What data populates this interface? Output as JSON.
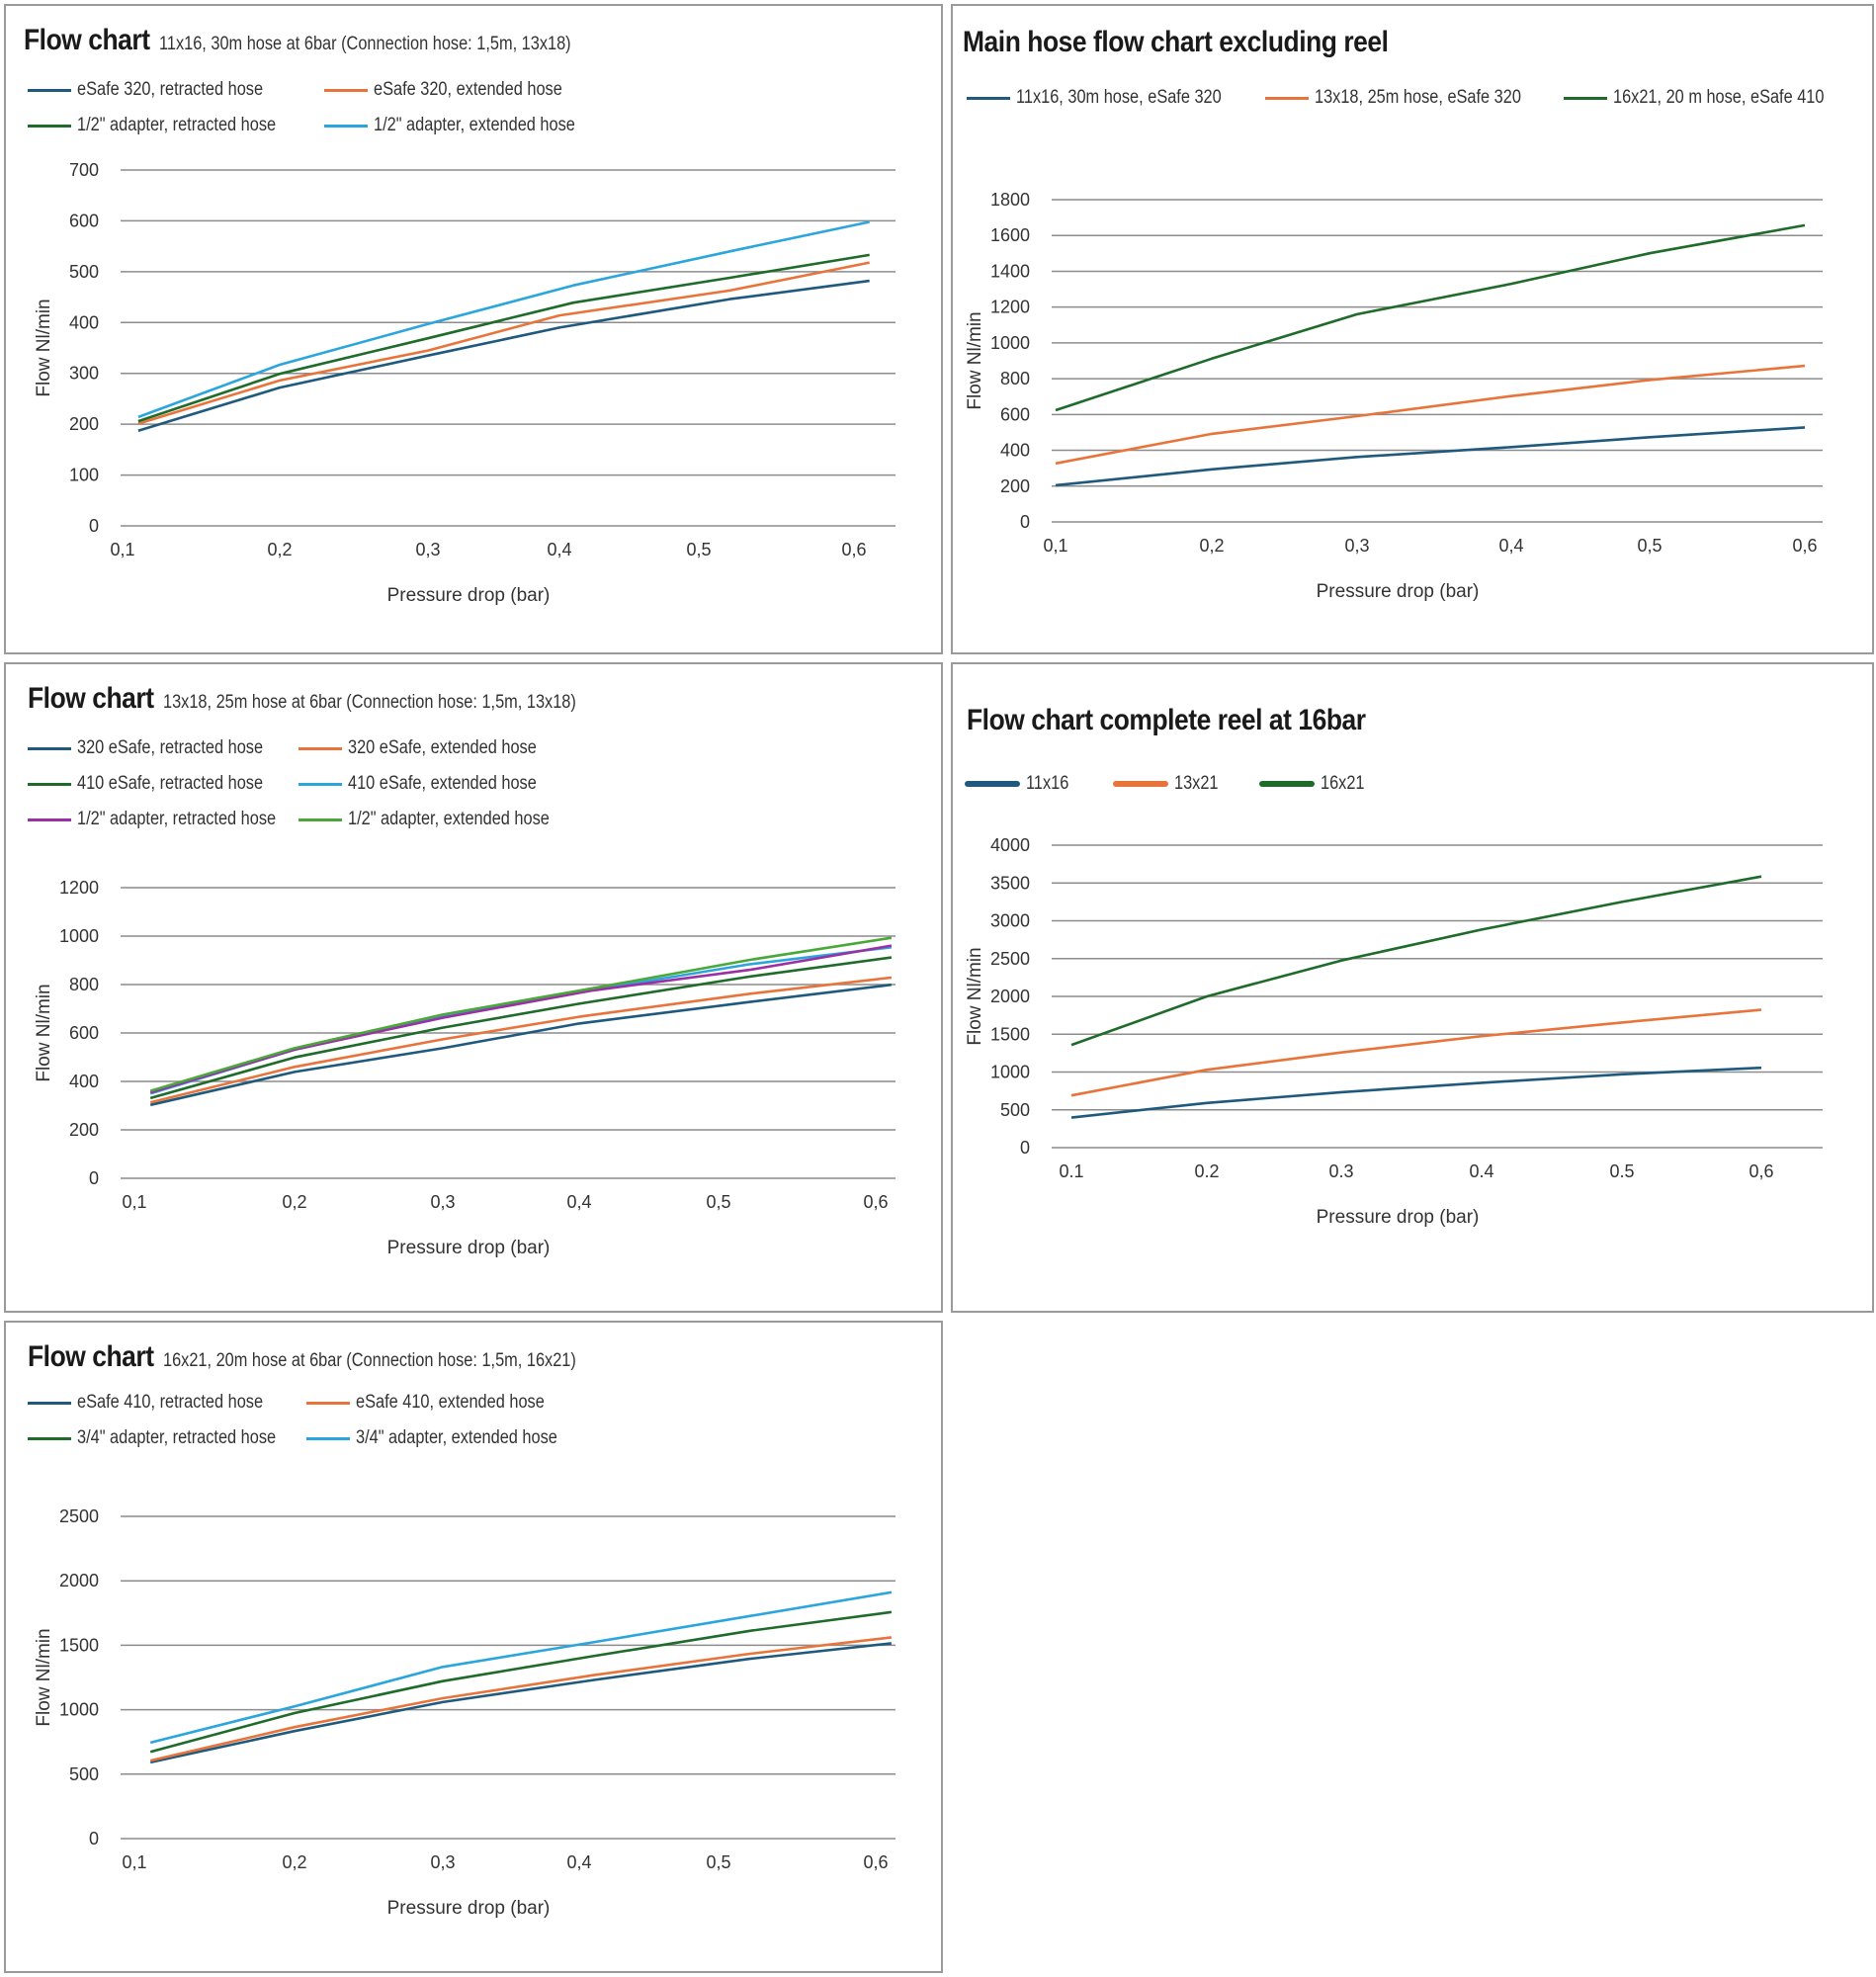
{
  "colors": {
    "dark_blue": "#1f5a7e",
    "orange": "#e8743b",
    "dark_green": "#1e6b2a",
    "light_blue": "#2ba6dc",
    "purple": "#9b2fa6",
    "light_green": "#4aa83a",
    "grid": "#8c8c8c"
  },
  "chart_data": [
    {
      "id": "chart1",
      "type": "line",
      "title": "Flow chart",
      "subtitle": "11x16, 30m hose at 6bar (Connection hose: 1,5m, 13x18)",
      "xlabel": "Pressure drop (bar)",
      "ylabel": "Flow Nl/min",
      "x_ticks": [
        "0,1",
        "0,2",
        "0,3",
        "0,4",
        "0,5",
        "0,6"
      ],
      "y_ticks": [
        "0",
        "100",
        "200",
        "300",
        "400",
        "500",
        "600",
        "700"
      ],
      "xlim": [
        0.1,
        0.6
      ],
      "ylim": [
        0,
        700
      ],
      "grid": true,
      "legend_position": "top",
      "series": [
        {
          "name": "eSafe 320, retracted hose",
          "color": "#1f5a7e",
          "x": [
            0.11,
            0.2,
            0.3,
            0.4,
            0.52,
            0.61
          ],
          "values": [
            187,
            272,
            335,
            390,
            446,
            482
          ]
        },
        {
          "name": "eSafe 320, extended hose",
          "color": "#e8743b",
          "x": [
            0.11,
            0.2,
            0.3,
            0.4,
            0.52,
            0.61
          ],
          "values": [
            201,
            286,
            345,
            414,
            463,
            518
          ]
        },
        {
          "name": "1/2\" adapter, retracted hose",
          "color": "#1e6b2a",
          "x": [
            0.11,
            0.2,
            0.3,
            0.41,
            0.52,
            0.61
          ],
          "values": [
            206,
            299,
            369,
            439,
            488,
            533
          ]
        },
        {
          "name": "1/2\" adapter, extended hose",
          "color": "#2ba6dc",
          "x": [
            0.11,
            0.2,
            0.3,
            0.41,
            0.52,
            0.61
          ],
          "values": [
            214,
            317,
            397,
            473,
            540,
            598
          ]
        }
      ]
    },
    {
      "id": "chart2",
      "type": "line",
      "title": "Main hose flow chart excluding reel",
      "subtitle": "",
      "xlabel": "Pressure drop (bar)",
      "ylabel": "Flow Nl/min",
      "x_ticks": [
        "0,1",
        "0,2",
        "0,3",
        "0,4",
        "0,5",
        "0,6"
      ],
      "y_ticks": [
        "0",
        "200",
        "400",
        "600",
        "800",
        "1000",
        "1200",
        "1400",
        "1600",
        "1800"
      ],
      "xlim": [
        0.1,
        0.6
      ],
      "ylim": [
        0,
        1800
      ],
      "grid": true,
      "legend_position": "top",
      "series": [
        {
          "name": "11x16, 30m hose, eSafe 320",
          "color": "#1f5a7e",
          "x": [
            0.1,
            0.2,
            0.3,
            0.4,
            0.5,
            0.6
          ],
          "values": [
            205,
            294,
            363,
            418,
            473,
            528
          ]
        },
        {
          "name": "13x18, 25m hose, eSafe 320",
          "color": "#e8743b",
          "x": [
            0.1,
            0.2,
            0.3,
            0.4,
            0.5,
            0.6
          ],
          "values": [
            327,
            492,
            591,
            703,
            793,
            872
          ]
        },
        {
          "name": "16x21, 20 m hose, eSafe 410",
          "color": "#1e6b2a",
          "x": [
            0.1,
            0.2,
            0.3,
            0.4,
            0.5,
            0.6
          ],
          "values": [
            624,
            912,
            1160,
            1330,
            1501,
            1657
          ]
        }
      ]
    },
    {
      "id": "chart3",
      "type": "line",
      "title": "Flow chart",
      "subtitle": "13x18, 25m hose at 6bar (Connection hose: 1,5m, 13x18)",
      "xlabel": "Pressure drop (bar)",
      "ylabel": "Flow Nl/min",
      "x_ticks": [
        "0,1",
        "0,2",
        "0,3",
        "0,4",
        "0,5",
        "0,6"
      ],
      "y_ticks": [
        "0",
        "200",
        "400",
        "600",
        "800",
        "1000",
        "1200"
      ],
      "xlim": [
        0.1,
        0.6
      ],
      "ylim": [
        0,
        1200
      ],
      "grid": true,
      "legend_position": "top",
      "series": [
        {
          "name": "320 eSafe, retracted hose",
          "color": "#1f5a7e",
          "x": [
            0.11,
            0.2,
            0.3,
            0.4,
            0.52,
            0.61
          ],
          "values": [
            303,
            439,
            537,
            639,
            728,
            799
          ]
        },
        {
          "name": "320 eSafe, extended hose",
          "color": "#e8743b",
          "x": [
            0.11,
            0.2,
            0.3,
            0.4,
            0.52,
            0.61
          ],
          "values": [
            313,
            460,
            574,
            667,
            762,
            829
          ]
        },
        {
          "name": "410 eSafe, retracted hose",
          "color": "#1e6b2a",
          "x": [
            0.11,
            0.2,
            0.3,
            0.4,
            0.52,
            0.61
          ],
          "values": [
            331,
            499,
            622,
            721,
            833,
            912
          ]
        },
        {
          "name": "410 eSafe, extended hose",
          "color": "#2ba6dc",
          "x": [
            0.11,
            0.2,
            0.3,
            0.41,
            0.52,
            0.61
          ],
          "values": [
            350,
            531,
            667,
            778,
            884,
            954
          ]
        },
        {
          "name": "1/2\" adapter, retracted hose",
          "color": "#9b2fa6",
          "x": [
            0.11,
            0.2,
            0.3,
            0.41,
            0.52,
            0.61
          ],
          "values": [
            354,
            531,
            663,
            776,
            861,
            961
          ]
        },
        {
          "name": "1/2\" adapter, extended hose",
          "color": "#4aa83a",
          "x": [
            0.11,
            0.2,
            0.3,
            0.41,
            0.52,
            0.61
          ],
          "values": [
            361,
            537,
            676,
            785,
            902,
            993
          ]
        }
      ]
    },
    {
      "id": "chart4",
      "type": "line",
      "title": "Flow chart complete reel at 16bar",
      "subtitle": "",
      "xlabel": "Pressure drop (bar)",
      "ylabel": "Flow Nl/min",
      "x_ticks": [
        "0.1",
        "0.2",
        "0.3",
        "0.4",
        "0.5",
        "0,6"
      ],
      "y_ticks": [
        "0",
        "500",
        "1000",
        "1500",
        "2000",
        "2500",
        "3000",
        "3500",
        "4000"
      ],
      "xlim": [
        0.1,
        0.6
      ],
      "ylim": [
        0,
        4000
      ],
      "grid": true,
      "legend_position": "top",
      "series": [
        {
          "name": "11x16",
          "color": "#1f5a7e",
          "x": [
            0.1,
            0.2,
            0.3,
            0.4,
            0.5,
            0.6
          ],
          "values": [
            397,
            591,
            733,
            858,
            970,
            1056
          ]
        },
        {
          "name": "13x21",
          "color": "#e8743b",
          "x": [
            0.1,
            0.2,
            0.3,
            0.4,
            0.5,
            0.6
          ],
          "values": [
            690,
            1030,
            1259,
            1474,
            1655,
            1823
          ]
        },
        {
          "name": "16x21",
          "color": "#1e6b2a",
          "x": [
            0.1,
            0.2,
            0.3,
            0.4,
            0.5,
            0.6
          ],
          "values": [
            1358,
            2000,
            2474,
            2884,
            3250,
            3586
          ]
        }
      ]
    },
    {
      "id": "chart5",
      "type": "line",
      "title": "Flow chart",
      "subtitle": "16x21, 20m hose at 6bar (Connection hose: 1,5m, 16x21)",
      "xlabel": "Pressure drop (bar)",
      "ylabel": "Flow Nl/min",
      "x_ticks": [
        "0,1",
        "0,2",
        "0,3",
        "0,4",
        "0,5",
        "0,6"
      ],
      "y_ticks": [
        "0",
        "500",
        "1000",
        "1500",
        "2000",
        "2500"
      ],
      "xlim": [
        0.1,
        0.6
      ],
      "ylim": [
        0,
        2500
      ],
      "grid": true,
      "legend_position": "top",
      "series": [
        {
          "name": "eSafe 410, retracted hose",
          "color": "#1f5a7e",
          "x": [
            0.11,
            0.2,
            0.3,
            0.41,
            0.52,
            0.61
          ],
          "values": [
            592,
            834,
            1059,
            1230,
            1395,
            1515
          ]
        },
        {
          "name": "eSafe 410, extended hose",
          "color": "#e8743b",
          "x": [
            0.11,
            0.2,
            0.3,
            0.41,
            0.52,
            0.61
          ],
          "values": [
            605,
            865,
            1089,
            1268,
            1434,
            1561
          ]
        },
        {
          "name": "3/4\" adapter, retracted hose",
          "color": "#1e6b2a",
          "x": [
            0.11,
            0.2,
            0.3,
            0.41,
            0.52,
            0.61
          ],
          "values": [
            673,
            974,
            1222,
            1416,
            1612,
            1758
          ]
        },
        {
          "name": "3/4\" adapter, extended hose",
          "color": "#2ba6dc",
          "x": [
            0.11,
            0.2,
            0.3,
            0.41,
            0.52,
            0.61
          ],
          "values": [
            745,
            1026,
            1332,
            1523,
            1727,
            1911
          ]
        }
      ]
    }
  ]
}
